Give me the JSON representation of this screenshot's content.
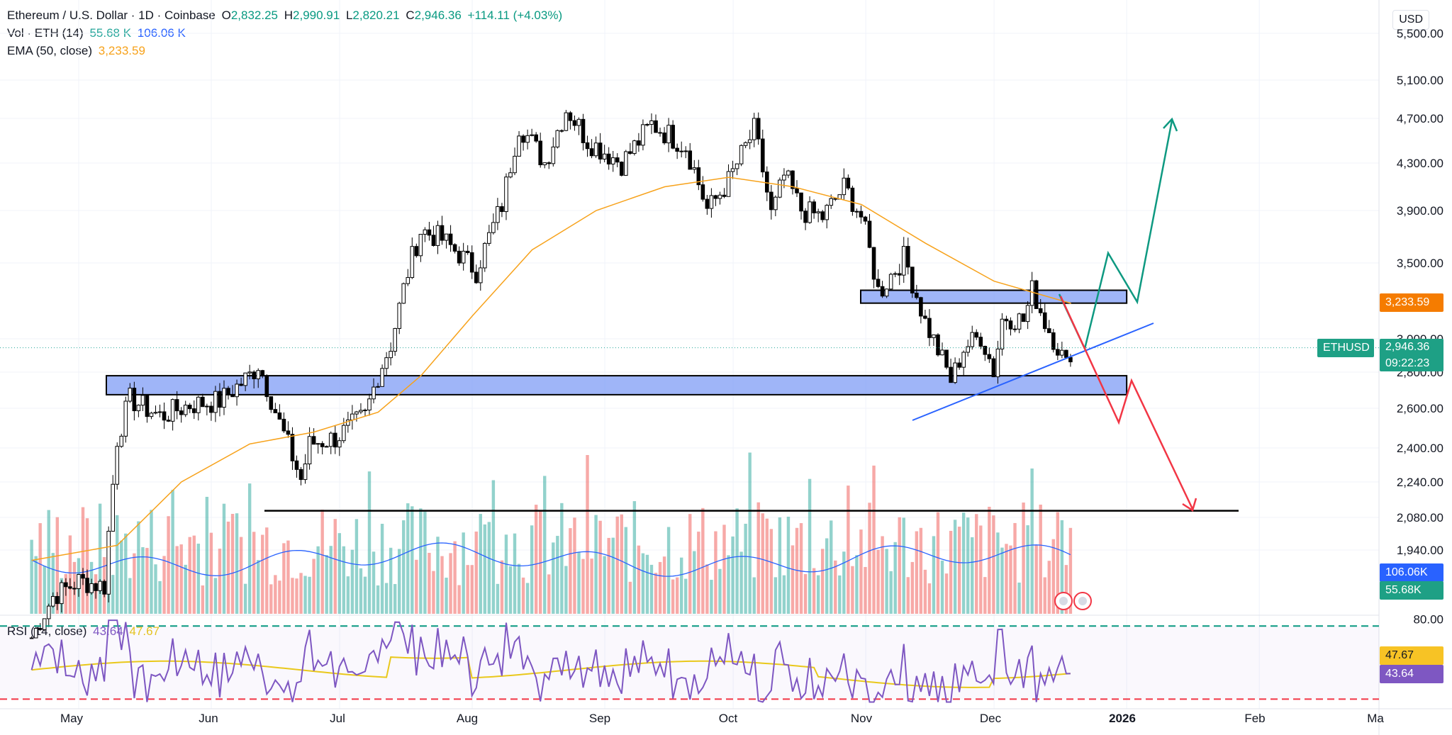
{
  "header": {
    "symbol_title": "Ethereum / U.S. Dollar · 1D · Coinbase",
    "ohlc": {
      "o_label": "O",
      "o": "2,832.25",
      "h_label": "H",
      "h": "2,990.91",
      "l_label": "L",
      "l": "2,820.21",
      "c_label": "C",
      "c": "2,946.36",
      "change": "+114.11 (+4.03%)"
    },
    "vol_label": "Vol · ETH (14)",
    "vol_value": "55.68 K",
    "vol_ma_value": "106.06 K",
    "ema_label": "EMA (50, close)",
    "ema_value": "3,233.59"
  },
  "currency": "USD",
  "colors": {
    "up": "#26a69a",
    "down": "#ef5350",
    "candle": "#000000",
    "ema": "#f7a21b",
    "vol_ma": "#2962ff",
    "rsi": "#7e57c2",
    "rsi_ma": "#e9c81b",
    "zone": "#7f9cf5",
    "projection_up": "#0e9981",
    "projection_down": "#f23645"
  },
  "badges": {
    "ema": "3,233.59",
    "symbol": "ETHUSD",
    "last_price": "2,946.36",
    "countdown": "09:22:23",
    "vol_ma": "106.06K",
    "vol": "55.68K",
    "rsi_ma": "47.67",
    "rsi": "43.64"
  },
  "rsi_legend": {
    "label": "RSI (14, close)",
    "rsi": "43.64",
    "ma": "47.67"
  },
  "chart_data": {
    "type": "line",
    "title": "Ethereum / U.S. Dollar · 1D · Coinbase",
    "price_ticks": [
      5500,
      5100,
      4700,
      4300,
      3900,
      3500,
      3000,
      2800,
      2600,
      2400,
      2240,
      2080,
      1940
    ],
    "price_tick_labels": [
      "5,500.00",
      "5,100.00",
      "4,700.00",
      "4,300.00",
      "3,900.00",
      "3,500.00",
      "3,000.00",
      "2,800.00",
      "2,600.00",
      "2,400.00",
      "2,240.00",
      "2,080.00",
      "1,940.00"
    ],
    "rsi_ticks": [
      80
    ],
    "rsi_tick_labels": [
      "80.00"
    ],
    "time_labels": [
      "May",
      "Jun",
      "Jul",
      "Aug",
      "Sep",
      "Oct",
      "Nov",
      "Dec",
      "2026",
      "Feb",
      "Ma"
    ],
    "price_path": [
      [
        "2025-04-20",
        1600
      ],
      [
        "2025-04-25",
        1760
      ],
      [
        "2025-05-01",
        1820
      ],
      [
        "2025-05-07",
        1800
      ],
      [
        "2025-05-10",
        2450
      ],
      [
        "2025-05-13",
        2650
      ],
      [
        "2025-05-20",
        2560
      ],
      [
        "2025-05-27",
        2620
      ],
      [
        "2025-06-03",
        2640
      ],
      [
        "2025-06-10",
        2780
      ],
      [
        "2025-06-12",
        2850
      ],
      [
        "2025-06-17",
        2520
      ],
      [
        "2025-06-22",
        2250
      ],
      [
        "2025-06-24",
        2420
      ],
      [
        "2025-06-30",
        2450
      ],
      [
        "2025-07-07",
        2560
      ],
      [
        "2025-07-10",
        2790
      ],
      [
        "2025-07-13",
        2970
      ],
      [
        "2025-07-17",
        3450
      ],
      [
        "2025-07-20",
        3750
      ],
      [
        "2025-07-25",
        3680
      ],
      [
        "2025-08-02",
        3450
      ],
      [
        "2025-08-08",
        3950
      ],
      [
        "2025-08-12",
        4650
      ],
      [
        "2025-08-18",
        4300
      ],
      [
        "2025-08-23",
        4800
      ],
      [
        "2025-08-28",
        4500
      ],
      [
        "2025-09-05",
        4300
      ],
      [
        "2025-09-12",
        4650
      ],
      [
        "2025-09-20",
        4450
      ],
      [
        "2025-09-25",
        3900
      ],
      [
        "2025-09-30",
        4150
      ],
      [
        "2025-10-06",
        4600
      ],
      [
        "2025-10-10",
        3850
      ],
      [
        "2025-10-13",
        4200
      ],
      [
        "2025-10-17",
        3900
      ],
      [
        "2025-10-22",
        3850
      ],
      [
        "2025-10-27",
        4100
      ],
      [
        "2025-10-31",
        3850
      ],
      [
        "2025-11-04",
        3300
      ],
      [
        "2025-11-10",
        3550
      ],
      [
        "2025-11-15",
        3100
      ],
      [
        "2025-11-21",
        2750
      ],
      [
        "2025-11-24",
        2950
      ],
      [
        "2025-11-28",
        3020
      ],
      [
        "2025-12-01",
        2800
      ],
      [
        "2025-12-03",
        3150
      ],
      [
        "2025-12-08",
        3120
      ],
      [
        "2025-12-10",
        3330
      ],
      [
        "2025-12-13",
        3100
      ],
      [
        "2025-12-16",
        2950
      ],
      [
        "2025-12-18",
        2830
      ],
      [
        "2025-12-19",
        2946
      ]
    ],
    "ema_path": [
      [
        "2025-04-20",
        1900
      ],
      [
        "2025-05-10",
        1960
      ],
      [
        "2025-05-25",
        2240
      ],
      [
        "2025-06-10",
        2420
      ],
      [
        "2025-06-25",
        2480
      ],
      [
        "2025-07-10",
        2580
      ],
      [
        "2025-07-20",
        2780
      ],
      [
        "2025-08-01",
        3150
      ],
      [
        "2025-08-15",
        3600
      ],
      [
        "2025-08-30",
        3900
      ],
      [
        "2025-09-15",
        4100
      ],
      [
        "2025-09-30",
        4180
      ],
      [
        "2025-10-15",
        4100
      ],
      [
        "2025-10-31",
        3950
      ],
      [
        "2025-11-15",
        3650
      ],
      [
        "2025-12-01",
        3380
      ],
      [
        "2025-12-19",
        3233.59
      ]
    ],
    "zones": [
      {
        "from": "2025-05-10",
        "to": "2026-01-01",
        "low": 2675,
        "high": 2780
      },
      {
        "from": "2025-11-01",
        "to": "2026-01-01",
        "low": 3235,
        "high": 3320
      }
    ],
    "support_line": {
      "from": "2025-06-22",
      "to": "2026-01-05",
      "price": 2110
    },
    "trendline": [
      [
        "2025-11-19",
        2560
      ],
      [
        "2025-12-31",
        3050
      ]
    ],
    "projection_up": [
      [
        "2025-12-14",
        3260
      ],
      [
        "2025-12-21",
        2950
      ],
      [
        "2025-12-27",
        3530
      ],
      [
        "2026-01-02",
        3250
      ],
      [
        "2026-01-12",
        4720
      ]
    ],
    "projection_down": [
      [
        "2025-12-20",
        2920
      ],
      [
        "2025-12-29",
        2550
      ],
      [
        "2026-01-02",
        2760
      ],
      [
        "2026-01-12",
        2100
      ]
    ],
    "volume_ma_last": 106.06,
    "volume_last": 55.68,
    "rsi_last": 43.64,
    "rsi_ma_last": 47.67,
    "rsi_band": [
      30,
      80
    ]
  }
}
